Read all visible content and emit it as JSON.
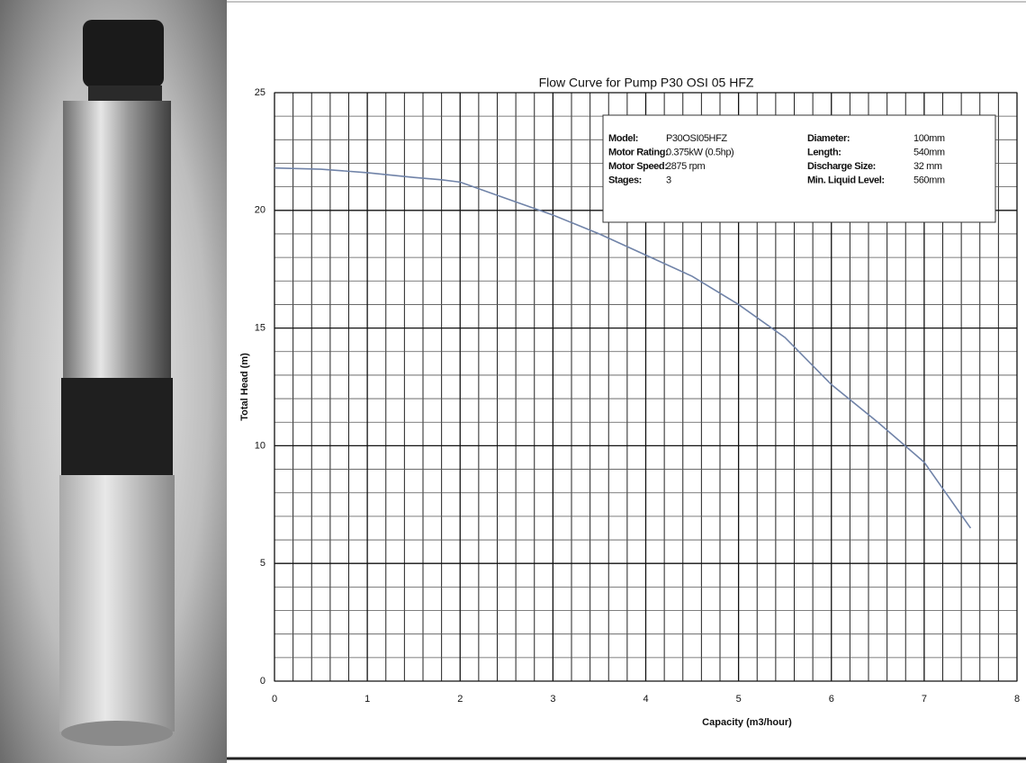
{
  "chart_data": {
    "type": "line",
    "title": "Flow Curve for Pump P30 OSI 05 HFZ",
    "x_label": "Capacity (m3/hour)",
    "y_label": "Total Head (m)",
    "x": [
      0,
      0.5,
      1,
      1.5,
      1.8,
      2,
      2.5,
      3,
      3.5,
      4,
      4.5,
      5,
      5.5,
      6,
      6.5,
      7,
      7.5
    ],
    "series": [
      {
        "color": "#7083a8",
        "values": [
          21.8,
          21.75,
          21.6,
          21.4,
          21.3,
          21.2,
          20.5,
          19.8,
          19.0,
          18.1,
          17.2,
          16.0,
          14.6,
          12.6,
          11.0,
          9.3,
          6.5
        ]
      }
    ],
    "xlim": [
      0,
      8
    ],
    "xticks": [
      0,
      1,
      2,
      3,
      4,
      5,
      6,
      7,
      8
    ],
    "ylim": [
      0,
      25
    ],
    "yticks": [
      0,
      5,
      10,
      15,
      20,
      25
    ],
    "grid": true,
    "x_minor_divisions": 5,
    "y_minor_divisions": 5,
    "specs": [
      [
        "Model:",
        "P30OSI05HFZ",
        "Diameter:",
        "100mm"
      ],
      [
        "Motor Rating:",
        "0.375kW (0.5hp)",
        "Length:",
        "540mm"
      ],
      [
        "Motor Speed:",
        "2875 rpm",
        "Discharge Size:",
        "32 mm"
      ],
      [
        "Stages:",
        "3",
        "Min. Liquid Level:",
        "560mm"
      ]
    ]
  }
}
